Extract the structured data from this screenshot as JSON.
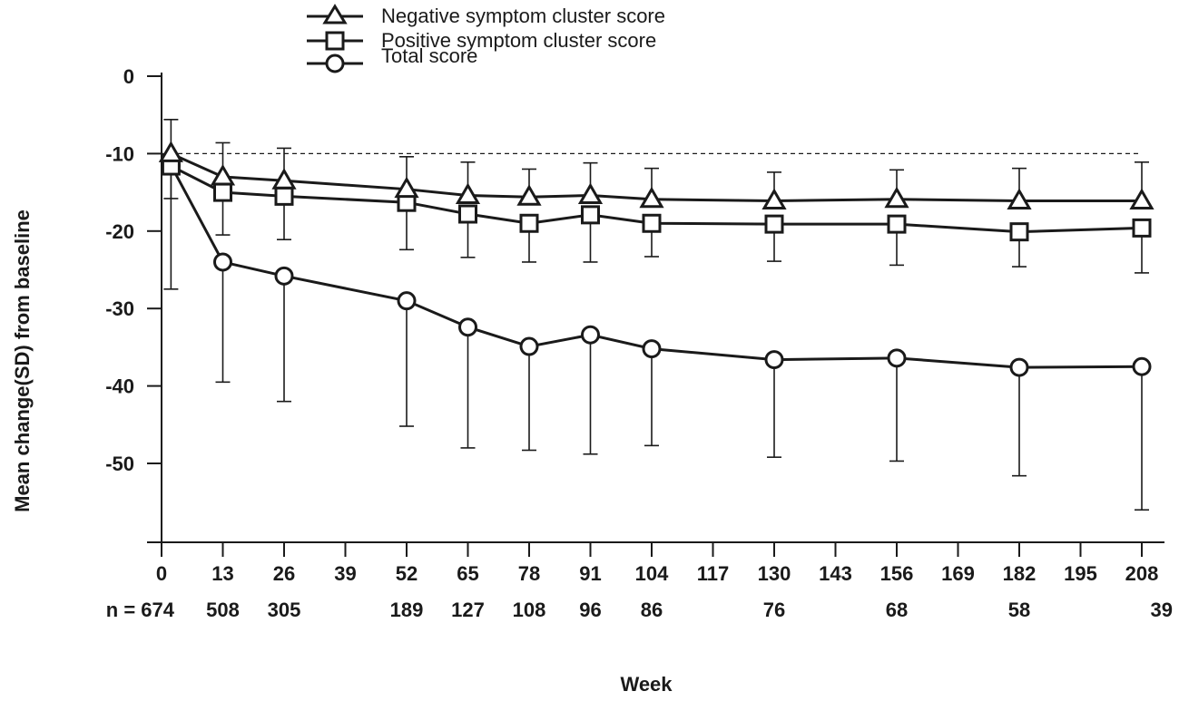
{
  "chart_data": {
    "type": "line",
    "xlabel": "Week",
    "ylabel": "Mean change(SD) from  baseline",
    "xlim": [
      0,
      208
    ],
    "ylim": [
      -60,
      0
    ],
    "x_ticks": [
      "0",
      "13",
      "26",
      "39",
      "52",
      "65",
      "78",
      "91",
      "104",
      "117",
      "130",
      "143",
      "156",
      "169",
      "182",
      "195",
      "208"
    ],
    "y_ticks": [
      "0",
      "-10",
      "-20",
      "-30",
      "-40",
      "-50"
    ],
    "y_tick_values": [
      0,
      -10,
      -20,
      -30,
      -40,
      -50
    ],
    "reference_line_y": -10,
    "n_row": [
      {
        "x": 0,
        "label": "n = 674"
      },
      {
        "x": 13,
        "label": "508"
      },
      {
        "x": 26,
        "label": "305"
      },
      {
        "x": 52,
        "label": "189"
      },
      {
        "x": 65,
        "label": "127"
      },
      {
        "x": 78,
        "label": "108"
      },
      {
        "x": 91,
        "label": "96"
      },
      {
        "x": 104,
        "label": "86"
      },
      {
        "x": 130,
        "label": "76"
      },
      {
        "x": 156,
        "label": "68"
      },
      {
        "x": 182,
        "label": "58"
      },
      {
        "x": 208,
        "label": "39"
      }
    ],
    "series": [
      {
        "name": "Negative symptom cluster score",
        "marker": "triangle",
        "points": [
          {
            "x": 0,
            "y": -10.2,
            "sd": null
          },
          {
            "x": 2,
            "y": -10,
            "sd": 4.4
          },
          {
            "x": 13,
            "y": -13,
            "sd": 4.4
          },
          {
            "x": 26,
            "y": -13.5,
            "sd": 4.2
          },
          {
            "x": 52,
            "y": -14.6,
            "sd": 4.2
          },
          {
            "x": 65,
            "y": -15.4,
            "sd": 4.3
          },
          {
            "x": 78,
            "y": -15.6,
            "sd": 3.6
          },
          {
            "x": 91,
            "y": -15.4,
            "sd": 4.2
          },
          {
            "x": 104,
            "y": -15.9,
            "sd": 4.0
          },
          {
            "x": 130,
            "y": -16.1,
            "sd": 3.7
          },
          {
            "x": 156,
            "y": -15.9,
            "sd": 3.8
          },
          {
            "x": 182,
            "y": -16.1,
            "sd": 4.2
          },
          {
            "x": 208,
            "y": -16.1,
            "sd": 5.0
          }
        ]
      },
      {
        "name": "Positive symptom cluster score",
        "marker": "square",
        "points": [
          {
            "x": 0,
            "y": -10.2,
            "sd": null
          },
          {
            "x": 2,
            "y": -11.6,
            "sd": 4.2
          },
          {
            "x": 13,
            "y": -15,
            "sd": 5.5
          },
          {
            "x": 26,
            "y": -15.5,
            "sd": 5.6
          },
          {
            "x": 52,
            "y": -16.3,
            "sd": 6.1
          },
          {
            "x": 65,
            "y": -17.8,
            "sd": 5.6
          },
          {
            "x": 78,
            "y": -19,
            "sd": 5.0
          },
          {
            "x": 91,
            "y": -17.9,
            "sd": 6.1
          },
          {
            "x": 104,
            "y": -19,
            "sd": 4.3
          },
          {
            "x": 130,
            "y": -19.1,
            "sd": 4.8
          },
          {
            "x": 156,
            "y": -19.1,
            "sd": 5.3
          },
          {
            "x": 182,
            "y": -20.1,
            "sd": 4.5
          },
          {
            "x": 208,
            "y": -19.6,
            "sd": 5.8
          }
        ]
      },
      {
        "name": "Total score",
        "marker": "circle",
        "points": [
          {
            "x": 0,
            "y": -10.2,
            "sd": null
          },
          {
            "x": 2,
            "y": -11.5,
            "sd": 16
          },
          {
            "x": 13,
            "y": -24,
            "sd": 15.5
          },
          {
            "x": 26,
            "y": -25.8,
            "sd": 16.2
          },
          {
            "x": 52,
            "y": -29,
            "sd": 16.2
          },
          {
            "x": 65,
            "y": -32.4,
            "sd": 15.6
          },
          {
            "x": 78,
            "y": -34.9,
            "sd": 13.4
          },
          {
            "x": 91,
            "y": -33.4,
            "sd": 15.4
          },
          {
            "x": 104,
            "y": -35.2,
            "sd": 12.5
          },
          {
            "x": 130,
            "y": -36.6,
            "sd": 12.6
          },
          {
            "x": 156,
            "y": -36.4,
            "sd": 13.3
          },
          {
            "x": 182,
            "y": -37.6,
            "sd": 14.0
          },
          {
            "x": 208,
            "y": -37.5,
            "sd": 18.5
          }
        ]
      }
    ]
  }
}
